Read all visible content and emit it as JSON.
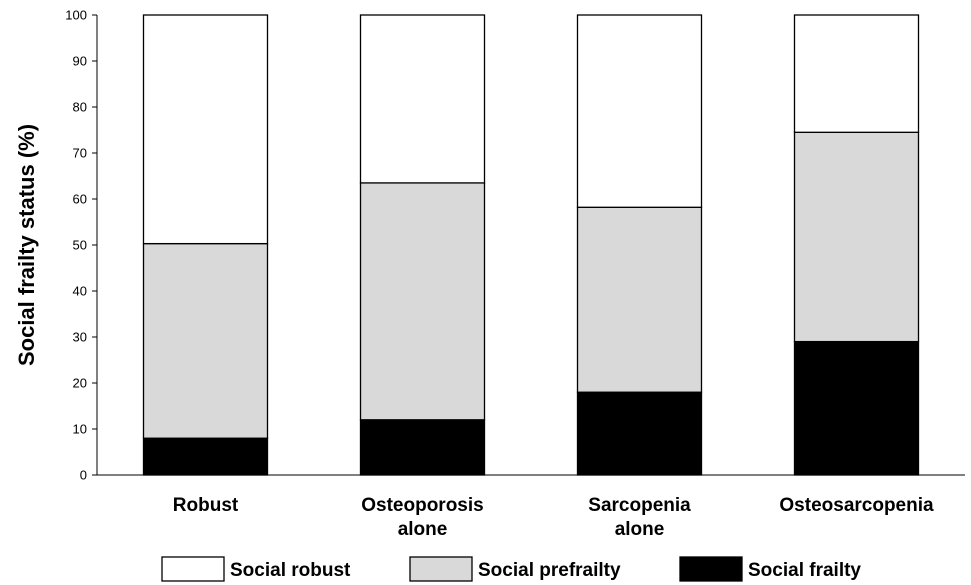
{
  "chart_data": {
    "type": "bar",
    "stacked": true,
    "categories": [
      [
        "Robust"
      ],
      [
        "Osteoporosis",
        "alone"
      ],
      [
        "Sarcopenia",
        "alone"
      ],
      [
        "Osteosarcopenia"
      ]
    ],
    "series": [
      {
        "name": "Social frailty",
        "values": [
          8,
          12,
          18,
          29
        ],
        "color": "#000000"
      },
      {
        "name": "Social prefrailty",
        "values": [
          42.3,
          51.5,
          40.2,
          45.5
        ],
        "color": "#d9d9d9"
      },
      {
        "name": "Social robust",
        "values": [
          49.7,
          36.5,
          41.8,
          25.5
        ],
        "color": "#ffffff"
      }
    ],
    "legend_order": [
      "Social robust",
      "Social prefrailty",
      "Social frailty"
    ],
    "ylabel": "Social frailty status (%)",
    "xlabel": "",
    "ylim": [
      0,
      100
    ],
    "yticks": [
      0,
      10,
      20,
      30,
      40,
      50,
      60,
      70,
      80,
      90,
      100
    ],
    "grid": false,
    "legend_position": "bottom"
  }
}
